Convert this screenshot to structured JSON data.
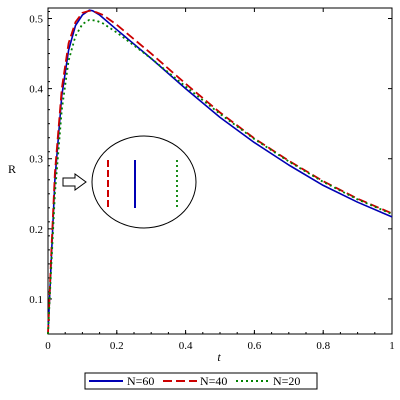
{
  "chart_data": {
    "type": "line",
    "title": "",
    "xlabel": "t",
    "ylabel": "R",
    "xlim": [
      0,
      1
    ],
    "ylim": [
      0.05,
      0.515
    ],
    "xticks": [
      0,
      0.2,
      0.4,
      0.6,
      0.8,
      1
    ],
    "xtick_labels": [
      "0",
      "0.2",
      "0.4",
      "0.6",
      "0.8",
      "1"
    ],
    "yticks": [
      0.1,
      0.2,
      0.3,
      0.4,
      0.5
    ],
    "ytick_labels": [
      "0.1",
      "0.2",
      "0.3",
      "0.4",
      "0.5"
    ],
    "grid": false,
    "legend_position": "bottom",
    "series": [
      {
        "name": "N=60",
        "color": "#0000b4",
        "dash": "solid",
        "x": [
          0,
          0.01,
          0.02,
          0.04,
          0.06,
          0.08,
          0.1,
          0.12,
          0.13,
          0.15,
          0.2,
          0.3,
          0.4,
          0.5,
          0.6,
          0.7,
          0.8,
          0.9,
          1.0
        ],
        "y": [
          0.05,
          0.16,
          0.27,
          0.39,
          0.455,
          0.49,
          0.505,
          0.512,
          0.511,
          0.505,
          0.484,
          0.443,
          0.4,
          0.359,
          0.323,
          0.291,
          0.262,
          0.238,
          0.217
        ]
      },
      {
        "name": "N=40",
        "color": "#cc0000",
        "dash": "dashed",
        "x": [
          0,
          0.01,
          0.02,
          0.04,
          0.06,
          0.08,
          0.1,
          0.12,
          0.14,
          0.16,
          0.2,
          0.3,
          0.4,
          0.5,
          0.6,
          0.7,
          0.8,
          0.9,
          1.0
        ],
        "y": [
          0.05,
          0.17,
          0.28,
          0.4,
          0.465,
          0.495,
          0.508,
          0.511,
          0.509,
          0.505,
          0.491,
          0.45,
          0.407,
          0.366,
          0.329,
          0.297,
          0.268,
          0.243,
          0.222
        ]
      },
      {
        "name": "N=20",
        "color": "#008000",
        "dash": "dotted",
        "x": [
          0,
          0.01,
          0.02,
          0.04,
          0.06,
          0.08,
          0.1,
          0.12,
          0.14,
          0.16,
          0.2,
          0.3,
          0.4,
          0.5,
          0.6,
          0.7,
          0.8,
          0.9,
          1.0
        ],
        "y": [
          0.05,
          0.15,
          0.25,
          0.37,
          0.44,
          0.475,
          0.492,
          0.498,
          0.497,
          0.493,
          0.48,
          0.443,
          0.403,
          0.364,
          0.328,
          0.296,
          0.267,
          0.242,
          0.221
        ]
      }
    ],
    "annotation": {
      "type": "zoom-inset",
      "shape": "circle",
      "points_to": "t≈0.02, R≈0.28",
      "marks": [
        "N=40",
        "N=60",
        "N=20"
      ]
    }
  }
}
